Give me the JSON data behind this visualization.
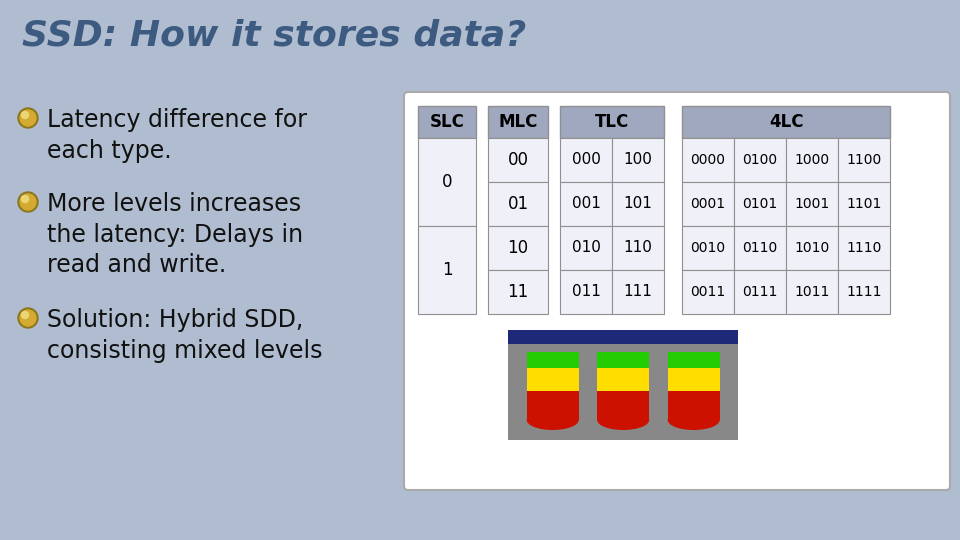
{
  "title": "SSD: How it stores data?",
  "title_color": "#3D5A80",
  "background_color": "#B0BDD0",
  "bullet_points": [
    "Latency difference for\neach type.",
    "More levels increases\nthe latency: Delays in\nread and write.",
    "Solution: Hybrid SDD,\nconsisting mixed levels"
  ],
  "bullet_color_outer": "#8B7520",
  "bullet_color_inner": "#D4AA30",
  "bullet_color_shine": "#F0DC80",
  "text_color": "#111111",
  "table": {
    "slc_values": [
      "0",
      "1"
    ],
    "mlc_values": [
      "00",
      "01",
      "10",
      "11"
    ],
    "tlc_values": [
      [
        "000",
        "100"
      ],
      [
        "001",
        "101"
      ],
      [
        "010",
        "110"
      ],
      [
        "011",
        "111"
      ]
    ],
    "flc_values": [
      [
        "0000",
        "0100",
        "1000",
        "1100"
      ],
      [
        "0001",
        "0101",
        "1001",
        "1101"
      ],
      [
        "0010",
        "0110",
        "1010",
        "1110"
      ],
      [
        "0011",
        "0111",
        "1011",
        "1111"
      ]
    ]
  },
  "table_header_color": "#A0A8C0",
  "table_cell_color": "#F0F0F8",
  "table_border_color": "#909090",
  "stick_dark_blue": "#1E2A78",
  "stick_gray": "#888888",
  "green_color": "#22CC00",
  "yellow_color": "#FFDD00",
  "red_color": "#CC1100"
}
